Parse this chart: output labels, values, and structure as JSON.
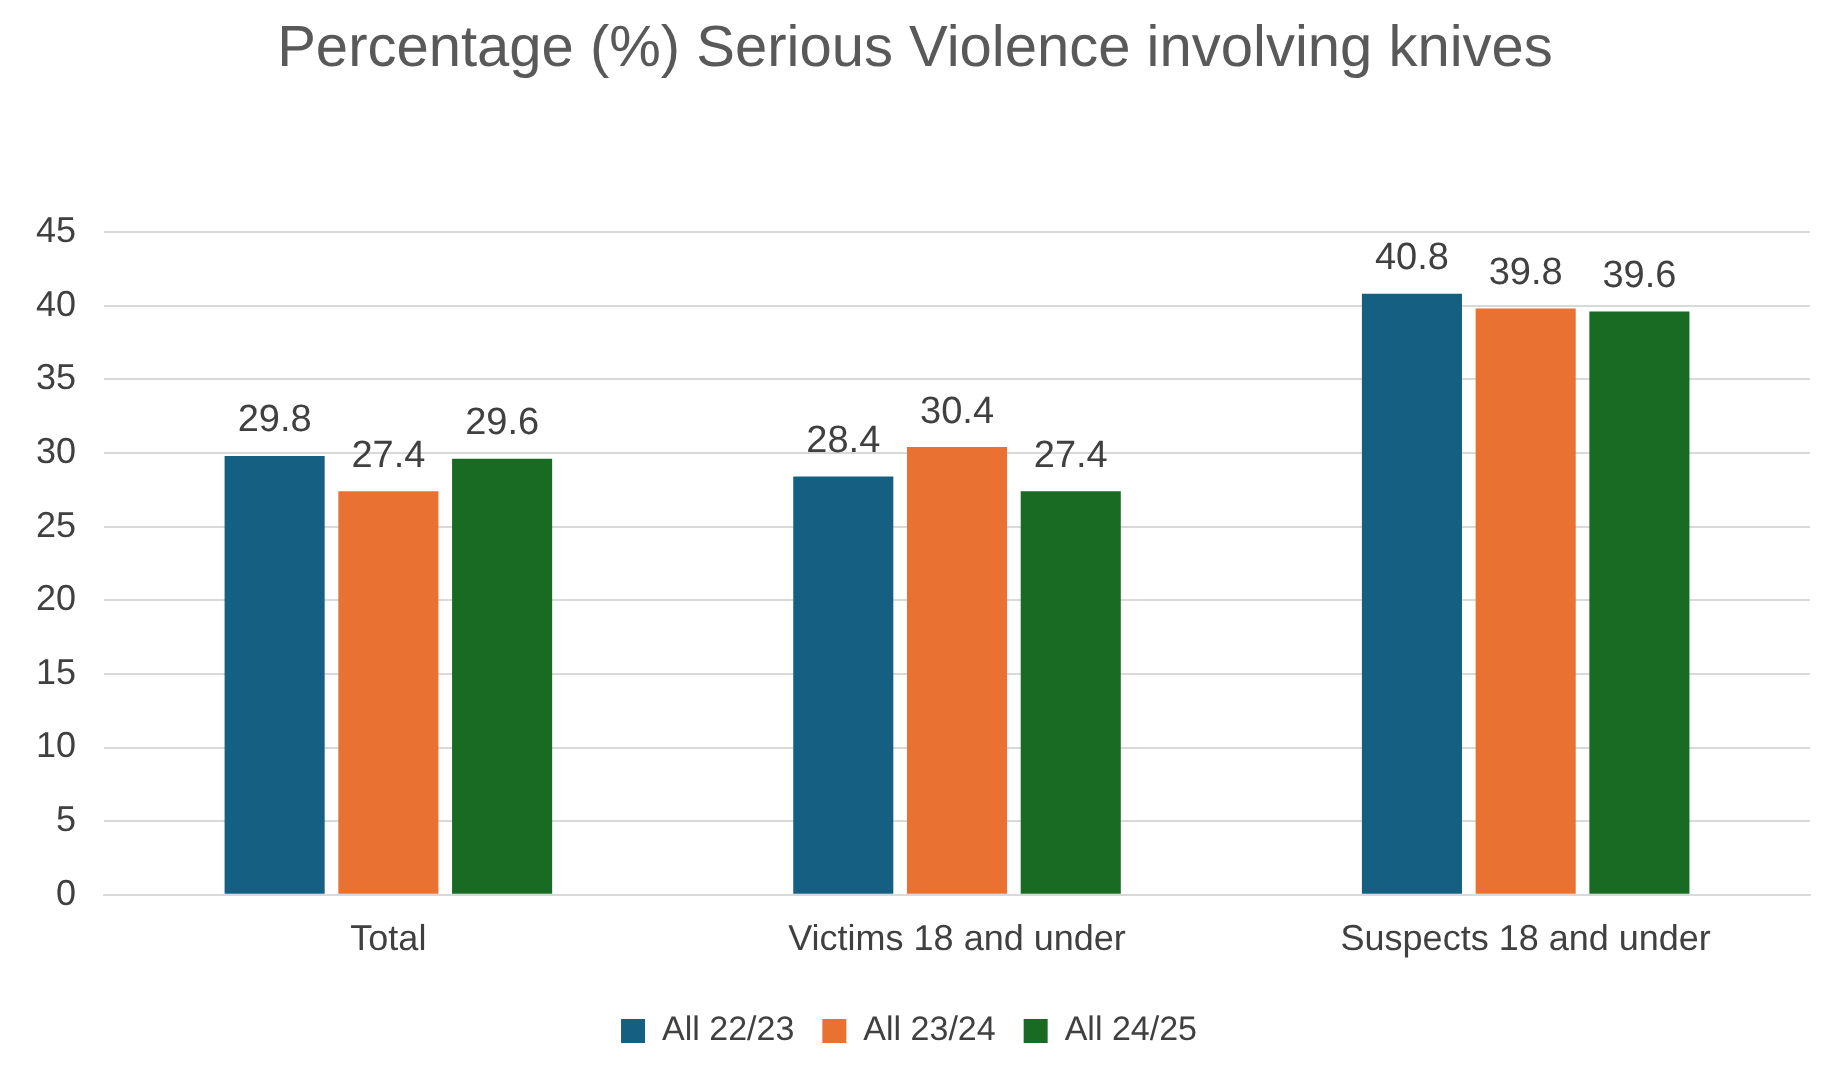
{
  "chart_data": {
    "type": "bar",
    "title": "Percentage (%) Serious Violence involving knives",
    "categories": [
      "Total",
      "Victims 18 and under",
      "Suspects 18 and under"
    ],
    "series": [
      {
        "name": "All 22/23",
        "color": "#156082",
        "values": [
          29.8,
          28.4,
          40.8
        ]
      },
      {
        "name": "All 23/24",
        "color": "#e97132",
        "values": [
          27.4,
          30.4,
          39.8
        ]
      },
      {
        "name": "All 24/25",
        "color": "#196b24",
        "values": [
          29.6,
          27.4,
          39.6
        ]
      }
    ],
    "ylim": [
      0,
      45
    ],
    "yticks": [
      0,
      5,
      10,
      15,
      20,
      25,
      30,
      35,
      40,
      45
    ],
    "grid": "y",
    "legend": "bottom",
    "data_labels": true
  }
}
